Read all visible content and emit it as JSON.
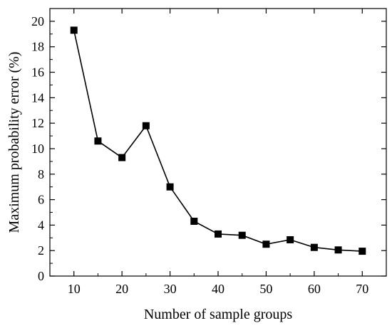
{
  "chart_data": {
    "type": "line",
    "title": "",
    "xlabel": "Number of sample groups",
    "ylabel": "Maximum probability error (%)",
    "x": [
      10,
      15,
      20,
      25,
      30,
      35,
      40,
      45,
      50,
      55,
      60,
      65,
      70
    ],
    "series": [
      {
        "values": [
          19.3,
          10.6,
          9.3,
          11.8,
          7.0,
          4.3,
          3.3,
          3.2,
          2.5,
          2.85,
          2.25,
          2.05,
          1.95
        ],
        "color": "#000000",
        "marker": "square"
      }
    ],
    "xlim": [
      5,
      75
    ],
    "ylim": [
      0,
      21
    ],
    "xticks": [
      10,
      20,
      30,
      40,
      50,
      60,
      70
    ],
    "yticks": [
      0,
      2,
      4,
      6,
      8,
      10,
      12,
      14,
      16,
      18,
      20
    ],
    "grid": false,
    "legend": "none"
  }
}
